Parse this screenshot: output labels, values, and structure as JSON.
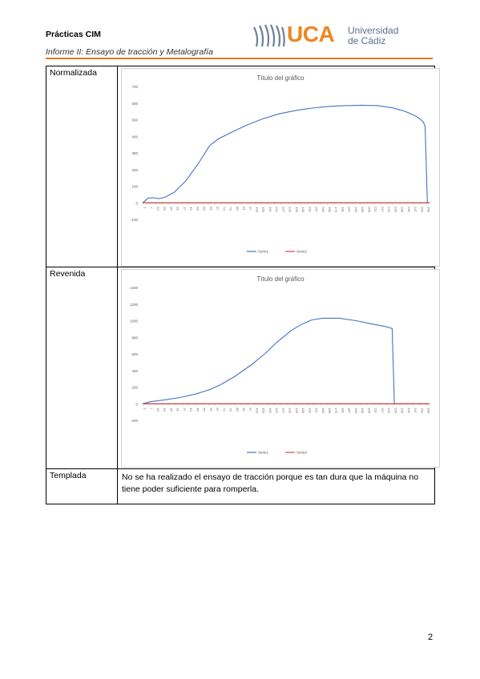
{
  "header": {
    "title": "Prácticas CIM",
    "subtitle": "Informe II: Ensayo de tracción y Metalografía",
    "logo": {
      "acronym": "UCA",
      "line1": "Universidad",
      "line2": "de Cádiz"
    }
  },
  "rows": [
    {
      "label": "Normalizada"
    },
    {
      "label": "Revenida"
    },
    {
      "label": "Templada",
      "text": "No se ha realizado el ensayo de tracción porque es tan dura que la máquina no tiene poder suficiente para romperla."
    }
  ],
  "page_number": "2",
  "chart_data": [
    {
      "type": "line",
      "title": "Título del gráfico",
      "ylim": [
        -100,
        700
      ],
      "yticks": [
        -100,
        0,
        100,
        200,
        300,
        400,
        500,
        600,
        700
      ],
      "xticks": [
        "1",
        "7",
        "13",
        "19",
        "25",
        "31",
        "37",
        "43",
        "49",
        "55",
        "61",
        "67",
        "73",
        "79",
        "85",
        "91",
        "97",
        "103",
        "109",
        "115",
        "121",
        "127",
        "133",
        "139",
        "145",
        "151",
        "157",
        "163",
        "169",
        "175",
        "181",
        "187",
        "193",
        "199",
        "205",
        "211",
        "217",
        "223",
        "229",
        "235",
        "241",
        "247",
        "253",
        "259"
      ],
      "xlim": [
        1,
        262
      ],
      "legend": "bottom",
      "series": [
        {
          "name": "Serie1",
          "color": "#4472c4",
          "points": [
            [
              1,
              0
            ],
            [
              6,
              28
            ],
            [
              10,
              30
            ],
            [
              16,
              25
            ],
            [
              22,
              35
            ],
            [
              30,
              65
            ],
            [
              40,
              130
            ],
            [
              52,
              240
            ],
            [
              62,
              345
            ],
            [
              70,
              385
            ],
            [
              82,
              425
            ],
            [
              95,
              465
            ],
            [
              110,
              505
            ],
            [
              125,
              535
            ],
            [
              140,
              555
            ],
            [
              155,
              570
            ],
            [
              170,
              580
            ],
            [
              185,
              585
            ],
            [
              200,
              587
            ],
            [
              215,
              585
            ],
            [
              228,
              572
            ],
            [
              240,
              550
            ],
            [
              250,
              520
            ],
            [
              256,
              490
            ],
            [
              258,
              460
            ],
            [
              260,
              0
            ],
            [
              262,
              0
            ]
          ]
        },
        {
          "name": "Serie2",
          "color": "#c0504d",
          "points": [
            [
              1,
              0
            ],
            [
              262,
              0
            ]
          ]
        }
      ]
    },
    {
      "type": "line",
      "title": "Título del gráfico",
      "ylim": [
        -200,
        1400
      ],
      "yticks": [
        -200,
        0,
        200,
        400,
        600,
        800,
        1000,
        1200,
        1400
      ],
      "xticks": [
        "1",
        "7",
        "13",
        "19",
        "25",
        "31",
        "37",
        "43",
        "49",
        "55",
        "61",
        "67",
        "73",
        "79",
        "85",
        "91",
        "97",
        "103",
        "109",
        "115",
        "121",
        "127",
        "133",
        "139",
        "145",
        "151",
        "157",
        "163",
        "169",
        "175",
        "181",
        "187",
        "193",
        "199",
        "205",
        "211",
        "217",
        "223",
        "229",
        "235",
        "241",
        "247",
        "253",
        "259"
      ],
      "xlim": [
        1,
        262
      ],
      "legend": "bottom",
      "series": [
        {
          "name": "Serie1",
          "color": "#4472c4",
          "points": [
            [
              1,
              0
            ],
            [
              8,
              25
            ],
            [
              20,
              45
            ],
            [
              35,
              75
            ],
            [
              50,
              120
            ],
            [
              62,
              170
            ],
            [
              72,
              230
            ],
            [
              85,
              330
            ],
            [
              100,
              470
            ],
            [
              112,
              600
            ],
            [
              124,
              750
            ],
            [
              136,
              880
            ],
            [
              146,
              960
            ],
            [
              155,
              1010
            ],
            [
              165,
              1030
            ],
            [
              180,
              1030
            ],
            [
              195,
              1000
            ],
            [
              210,
              960
            ],
            [
              222,
              930
            ],
            [
              228,
              905
            ],
            [
              230,
              0
            ],
            [
              262,
              0
            ]
          ]
        },
        {
          "name": "Serie2",
          "color": "#c0504d",
          "points": [
            [
              1,
              0
            ],
            [
              262,
              0
            ]
          ]
        }
      ]
    }
  ]
}
